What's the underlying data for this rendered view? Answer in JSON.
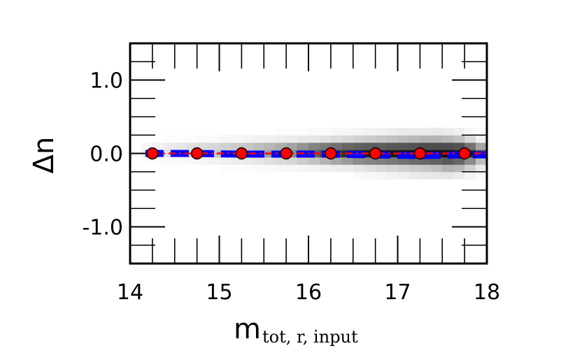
{
  "chart_data": {
    "type": "scatter",
    "title": "",
    "xlabel": "m",
    "xlabel_subscript": "tot, r, input",
    "ylabel": "Δn",
    "xlim": [
      14,
      18
    ],
    "ylim": [
      -1.5,
      1.5
    ],
    "x_ticks": [
      14,
      15,
      16,
      17,
      18
    ],
    "x_tick_labels": [
      "14",
      "15",
      "16",
      "17",
      "18"
    ],
    "y_ticks": [
      -1.0,
      0.0,
      1.0
    ],
    "y_tick_labels": [
      "-1.0",
      "0.0",
      "1.0"
    ],
    "grid": false,
    "series": [
      {
        "style": "red-circles-dashdot",
        "color": "#ff0000",
        "x": [
          14.25,
          14.75,
          15.25,
          15.75,
          16.25,
          16.75,
          17.25,
          17.75
        ],
        "y": [
          0.0,
          0.0,
          0.0,
          0.0,
          0.0,
          0.0,
          0.0,
          0.0
        ]
      },
      {
        "style": "blue-dashed",
        "color": "#0000ff",
        "x": [
          14.25,
          14.75,
          15.25,
          15.75,
          16.25,
          16.75,
          17.25,
          17.75
        ],
        "y": [
          0.0,
          0.0,
          -0.01,
          -0.01,
          -0.01,
          -0.02,
          -0.03,
          -0.02
        ]
      }
    ],
    "density": {
      "x_edges": [
        14.0,
        14.125,
        14.25,
        14.375,
        14.5,
        14.625,
        14.75,
        14.875,
        15.0,
        15.125,
        15.25,
        15.375,
        15.5,
        15.625,
        15.75,
        15.875,
        16.0,
        16.125,
        16.25,
        16.375,
        16.5,
        16.625,
        16.75,
        16.875,
        17.0,
        17.125,
        17.25,
        17.375,
        17.5,
        17.625,
        17.75,
        17.875,
        18.0
      ],
      "y_edges": [
        -0.35,
        -0.25,
        -0.15,
        -0.05,
        0.05,
        0.15,
        0.25,
        0.35
      ],
      "counts": [
        [
          0.0,
          0.0,
          0.0,
          0.0,
          0.0,
          0.0,
          0.0,
          0.0,
          0.0,
          0.0,
          0.0,
          0.0,
          0.0,
          0.0,
          0.0,
          0.0,
          0.0,
          0.0,
          0.0,
          0.0,
          0.02,
          0.03,
          0.04,
          0.05,
          0.06,
          0.08,
          0.09,
          0.1,
          0.1,
          0.08,
          0.04,
          0.02
        ],
        [
          0.0,
          0.0,
          0.0,
          0.0,
          0.0,
          0.0,
          0.0,
          0.0,
          0.01,
          0.01,
          0.01,
          0.02,
          0.02,
          0.03,
          0.03,
          0.04,
          0.05,
          0.06,
          0.07,
          0.08,
          0.1,
          0.12,
          0.14,
          0.16,
          0.18,
          0.2,
          0.22,
          0.25,
          0.3,
          0.28,
          0.18,
          0.08
        ],
        [
          0.0,
          0.01,
          0.01,
          0.02,
          0.02,
          0.03,
          0.04,
          0.05,
          0.06,
          0.07,
          0.08,
          0.1,
          0.12,
          0.14,
          0.16,
          0.2,
          0.24,
          0.3,
          0.35,
          0.4,
          0.45,
          0.48,
          0.5,
          0.52,
          0.55,
          0.58,
          0.6,
          0.62,
          0.65,
          0.6,
          0.45,
          0.25
        ],
        [
          0.02,
          0.06,
          0.1,
          0.12,
          0.14,
          0.16,
          0.2,
          0.22,
          0.24,
          0.26,
          0.3,
          0.34,
          0.38,
          0.42,
          0.46,
          0.55,
          0.62,
          0.7,
          0.76,
          0.82,
          0.86,
          0.88,
          0.9,
          0.9,
          0.92,
          0.92,
          0.92,
          0.92,
          0.92,
          0.9,
          0.85,
          0.7
        ],
        [
          0.0,
          0.03,
          0.05,
          0.08,
          0.1,
          0.12,
          0.14,
          0.16,
          0.18,
          0.2,
          0.22,
          0.25,
          0.28,
          0.32,
          0.36,
          0.42,
          0.48,
          0.52,
          0.56,
          0.6,
          0.62,
          0.64,
          0.64,
          0.66,
          0.66,
          0.68,
          0.7,
          0.7,
          0.7,
          0.68,
          0.55,
          0.35
        ],
        [
          0.0,
          0.0,
          0.0,
          0.01,
          0.01,
          0.01,
          0.02,
          0.02,
          0.03,
          0.03,
          0.04,
          0.05,
          0.06,
          0.07,
          0.08,
          0.09,
          0.1,
          0.12,
          0.14,
          0.16,
          0.18,
          0.2,
          0.22,
          0.24,
          0.26,
          0.28,
          0.3,
          0.3,
          0.28,
          0.24,
          0.14,
          0.06
        ],
        [
          0.0,
          0.0,
          0.0,
          0.0,
          0.0,
          0.0,
          0.0,
          0.0,
          0.0,
          0.0,
          0.0,
          0.0,
          0.0,
          0.01,
          0.01,
          0.01,
          0.02,
          0.02,
          0.03,
          0.03,
          0.04,
          0.05,
          0.06,
          0.07,
          0.08,
          0.08,
          0.08,
          0.09,
          0.08,
          0.06,
          0.03,
          0.01
        ]
      ]
    }
  }
}
